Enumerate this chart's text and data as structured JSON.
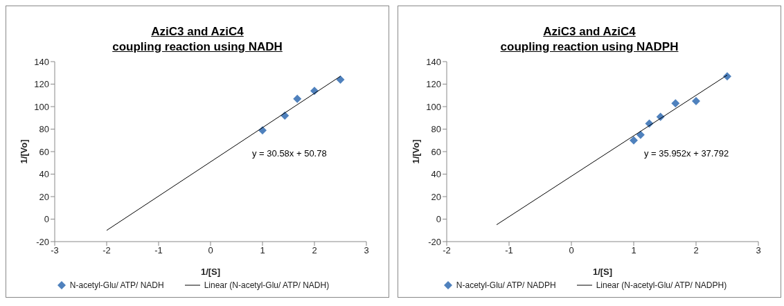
{
  "chart_data": [
    {
      "type": "scatter",
      "title": "AziC3 and AziC4\ncoupling reaction using NADH",
      "xlabel": "1/[S]",
      "ylabel": "1/[Vo]",
      "xlim": [
        -3,
        3
      ],
      "xticks": [
        -3,
        -2,
        -1,
        0,
        1,
        2,
        3
      ],
      "ylim": [
        -20,
        140
      ],
      "yticks": [
        -20,
        0,
        20,
        40,
        60,
        80,
        100,
        120,
        140
      ],
      "grid": false,
      "legend": "bottom",
      "annotations": [
        "y = 30.58x + 50.78"
      ],
      "series": [
        {
          "name": "N-acetyl-Glu/ ATP/ NADH",
          "marker": "diamond",
          "color": "#4f81bd",
          "x": [
            1,
            1.43,
            1.67,
            2,
            2.5
          ],
          "values": [
            79,
            92,
            107,
            114,
            124
          ]
        },
        {
          "name": "Linear (N-acetyl-Glu/ ATP/ NADH)",
          "type": "line",
          "marker": "none",
          "color": "#000000",
          "x": [
            -2,
            2.5
          ],
          "values": [
            -10,
            127
          ]
        }
      ]
    },
    {
      "type": "scatter",
      "title": "AziC3 and AziC4\ncoupling reaction using NADPH",
      "xlabel": "1/[S]",
      "ylabel": "1/[Vo]",
      "xlim": [
        -2,
        3
      ],
      "xticks": [
        -2,
        -1,
        0,
        1,
        2,
        3
      ],
      "ylim": [
        -20,
        140
      ],
      "yticks": [
        -20,
        0,
        20,
        40,
        60,
        80,
        100,
        120,
        140
      ],
      "grid": false,
      "legend": "bottom",
      "annotations": [
        "y = 35.952x + 37.792"
      ],
      "series": [
        {
          "name": "N-acetyl-Glu/ ATP/ NADPH",
          "marker": "diamond",
          "color": "#4f81bd",
          "x": [
            1,
            1.11,
            1.25,
            1.43,
            1.67,
            2,
            2.5
          ],
          "values": [
            70,
            75,
            85,
            91,
            103,
            105,
            127
          ]
        },
        {
          "name": "Linear (N-acetyl-Glu/ ATP/ NADPH)",
          "type": "line",
          "marker": "none",
          "color": "#000000",
          "x": [
            -1.2,
            2.5
          ],
          "values": [
            -5,
            128
          ]
        }
      ]
    }
  ]
}
